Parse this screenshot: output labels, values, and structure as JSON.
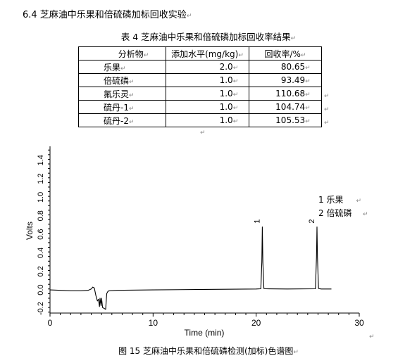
{
  "section_heading": "6.4  芝麻油中乐果和倍硫磷加标回收实验",
  "table_caption": "表 4 芝麻油中乐果和倍硫磷加标回收率结果",
  "table": {
    "headers": [
      "分析物",
      "添加水平(mg/kg)",
      "回收率/%"
    ],
    "rows": [
      [
        "乐果",
        "2.0",
        "80.65"
      ],
      [
        "倍硫磷",
        "1.0",
        "93.49"
      ],
      [
        "氟乐灵",
        "1.0",
        "110.68"
      ],
      [
        "硫丹-1",
        "1.0",
        "104.74"
      ],
      [
        "硫丹-2",
        "1.0",
        "105.53"
      ]
    ]
  },
  "paragraph_mark": "↵",
  "figure_caption": "图 15  芝麻油中乐果和倍硫磷检测(加标)色谱图",
  "chart_data": {
    "type": "line",
    "title": "",
    "xlabel": "Time (min)",
    "ylabel": "Volts",
    "xlim": [
      0,
      30
    ],
    "ylim": [
      -0.25,
      1.55
    ],
    "x_ticks": [
      0,
      10,
      20,
      30
    ],
    "y_ticks": [
      "-0.2",
      "0.0",
      "0.2",
      "0.4",
      "0.6",
      "0.8",
      "1.0",
      "1.2",
      "1.4"
    ],
    "grid": false,
    "legend": [
      "1  乐果",
      "2  倍硫磷"
    ],
    "legend_placement": "top-right",
    "peaks": [
      {
        "label": "1",
        "time": 20.6,
        "height": 0.68
      },
      {
        "label": "2",
        "time": 25.9,
        "height": 0.68
      }
    ],
    "series": [
      {
        "x": [
          0,
          1,
          2,
          3,
          3.7,
          4.0,
          4.15,
          4.3,
          4.45,
          4.6,
          4.7,
          4.8,
          4.85,
          4.95,
          5.0,
          5.1,
          5.4,
          5.5,
          5.6,
          5.7,
          6.5,
          10,
          15,
          20,
          20.45,
          20.55,
          20.6,
          20.65,
          20.75,
          20.9,
          23,
          25.75,
          25.85,
          25.9,
          25.95,
          26.05,
          26.3,
          27.3
        ],
        "y": [
          0.0,
          -0.005,
          -0.01,
          -0.01,
          -0.005,
          0.01,
          0.03,
          0.02,
          -0.06,
          -0.12,
          -0.1,
          -0.18,
          -0.09,
          -0.17,
          -0.09,
          -0.19,
          -0.21,
          -0.04,
          -0.02,
          -0.01,
          -0.005,
          0.0,
          0.005,
          0.01,
          0.012,
          0.3,
          0.68,
          0.3,
          0.015,
          0.012,
          0.01,
          0.012,
          0.35,
          0.68,
          0.35,
          0.015,
          0.01,
          0.01
        ]
      }
    ]
  }
}
